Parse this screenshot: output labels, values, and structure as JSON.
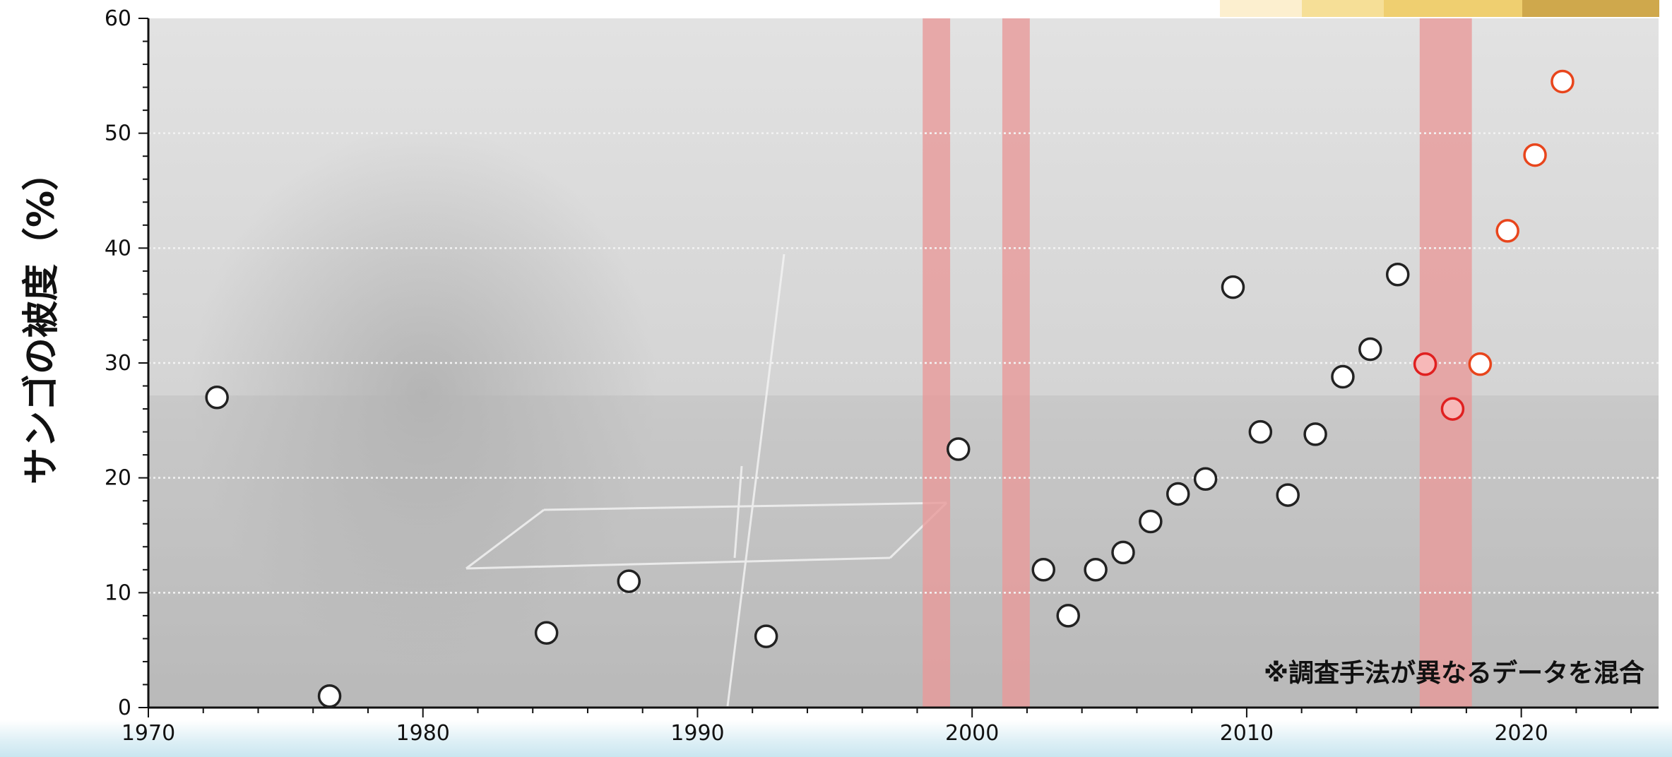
{
  "chart_data": {
    "type": "scatter",
    "title": "",
    "ylabel": "サンゴの被度（%）",
    "xlabel": "",
    "xlim": [
      1970,
      2025
    ],
    "ylim": [
      0,
      60
    ],
    "x_ticks": [
      "1970",
      "1980",
      "1990",
      "2000",
      "2010",
      "2020"
    ],
    "y_ticks": [
      "0",
      "10",
      "20",
      "30",
      "40",
      "50",
      "60"
    ],
    "grid": "horizontal dotted",
    "annotation": "※調査手法が異なるデータを混合",
    "highlight_periods": [
      [
        1998.2,
        1999.2
      ],
      [
        2001.1,
        2002.1
      ],
      [
        2016.3,
        2018.2
      ]
    ],
    "highlight_color": "#e89a9a",
    "series": [
      {
        "style": "white-fill",
        "points": [
          [
            1972.5,
            27
          ],
          [
            1976.6,
            1
          ],
          [
            1984.5,
            6.5
          ],
          [
            1987.5,
            11
          ],
          [
            1992.5,
            6.2
          ],
          [
            1999.5,
            22.5
          ],
          [
            2002.6,
            12
          ],
          [
            2003.5,
            8
          ],
          [
            2004.5,
            12
          ],
          [
            2005.5,
            13.5
          ],
          [
            2006.5,
            16.2
          ],
          [
            2007.5,
            18.6
          ],
          [
            2008.5,
            19.9
          ],
          [
            2009.5,
            36.6
          ],
          [
            2010.5,
            24
          ],
          [
            2011.5,
            18.5
          ],
          [
            2012.5,
            23.8
          ],
          [
            2013.5,
            28.8
          ],
          [
            2014.5,
            31.2
          ],
          [
            2015.5,
            37.7
          ]
        ]
      },
      {
        "style": "pink-fill-red-edge",
        "points": [
          [
            2016.5,
            29.9
          ],
          [
            2017.5,
            26
          ]
        ]
      },
      {
        "style": "white-fill-red-edge",
        "points": [
          [
            2018.5,
            29.9
          ],
          [
            2019.5,
            41.5
          ],
          [
            2020.5,
            48.1
          ],
          [
            2021.5,
            54.5
          ]
        ]
      }
    ],
    "colors": {
      "background_photo": "#d6d6d6",
      "white_marker_fill": "#ffffff",
      "white_marker_edge": "#222222",
      "pink_marker_fill": "#f7b8b8",
      "red_marker_edge": "#e02020",
      "orange_red_marker_edge": "#e8451c"
    }
  }
}
